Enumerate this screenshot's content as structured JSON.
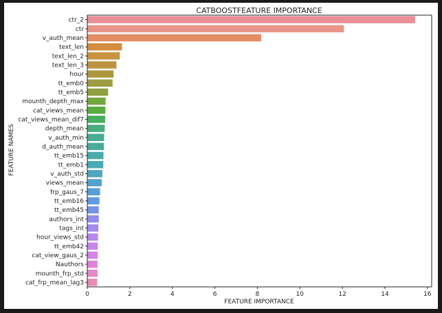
{
  "chart_data": {
    "type": "bar",
    "orientation": "horizontal",
    "title": "CATBOOSTFEATURE IMPORTANCE",
    "xlabel": "FEATURE IMPORTANCE",
    "ylabel": "FEATURE NAMES",
    "xlim": [
      0,
      16.2
    ],
    "xticks": [
      0,
      2,
      4,
      6,
      8,
      10,
      12,
      14,
      16
    ],
    "grid": false,
    "categories": [
      "ctr_2",
      "ctr",
      "v_auth_mean",
      "text_len",
      "text_len_2",
      "text_len_3",
      "hour",
      "tt_emb0",
      "tt_emb5",
      "mounth_depth_max",
      "cat_views_mean",
      "cat_views_mean_dif7",
      "depth_mean",
      "v_auth_min",
      "d_auth_mean",
      "tt_emb15",
      "tt_emb1",
      "v_auth_std",
      "views_mean",
      "frp_gaus_7",
      "tt_emb16",
      "tt_emb45",
      "authors_int",
      "tags_int",
      "hour_views_std",
      "tt_emb42",
      "cat_view_gaus_2",
      "Nauthors",
      "mounth_frp_std",
      "cat_frp_mean_lag3"
    ],
    "values": [
      15.42,
      12.07,
      8.18,
      1.63,
      1.53,
      1.37,
      1.24,
      1.19,
      0.98,
      0.86,
      0.85,
      0.84,
      0.82,
      0.79,
      0.78,
      0.76,
      0.75,
      0.71,
      0.68,
      0.6,
      0.57,
      0.54,
      0.54,
      0.52,
      0.5,
      0.49,
      0.49,
      0.48,
      0.48,
      0.47
    ],
    "colors": [
      "#ea9099",
      "#e99488",
      "#e38d65",
      "#d38e40",
      "#c99241",
      "#bc9441",
      "#ad9840",
      "#9d9c3f",
      "#8ea03f",
      "#72a63e",
      "#5aab42",
      "#46ae5f",
      "#48ad80",
      "#49ac90",
      "#4aab9a",
      "#4babaa",
      "#4caab5",
      "#4fa7c0",
      "#53a3cc",
      "#589fd6",
      "#6199e2",
      "#7793e6",
      "#908cea",
      "#a38aee",
      "#b488ef",
      "#c586ee",
      "#d583e8",
      "#e080d8",
      "#e388c8",
      "#e78db6"
    ]
  }
}
